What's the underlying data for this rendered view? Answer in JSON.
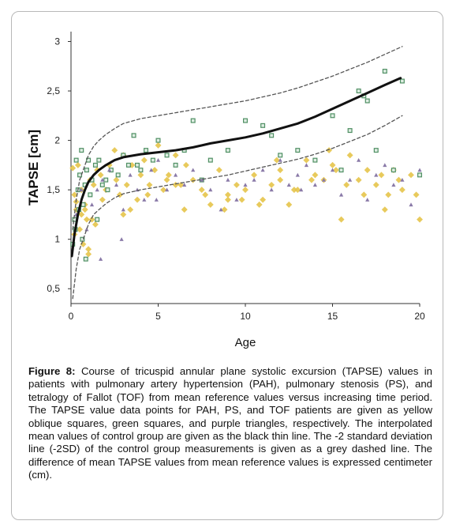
{
  "caption": {
    "label": "Figure 8:",
    "text": "Course of tricuspid annular plane systolic excursion (TAPSE) values in patients with pulmonary artery hypertension (PAH), pulmonary stenosis (PS), and tetralogy of Fallot (TOF) from mean reference values versus increasing time period. The TAPSE value data points for PAH, PS, and TOF patients are given as yellow oblique squares, green squares, and purple triangles, respectively. The interpolated mean values of control group are given as the black thin line. The -2 standard deviation line (-2SD) of the control group measurements is given as a grey dashed line. The difference of mean TAPSE values from mean reference values is expressed centimeter (cm)."
  },
  "chart_data": {
    "type": "scatter",
    "xlabel": "Age",
    "ylabel": "TAPSE [cm]",
    "xlim": [
      0,
      20
    ],
    "ylim": [
      0.35,
      3.1
    ],
    "x_ticks": [
      0,
      5,
      10,
      15,
      20
    ],
    "x_tick_labels": [
      "0",
      "5",
      "10",
      "15",
      "20"
    ],
    "y_ticks": [
      0.5,
      1,
      1.5,
      2,
      2.5,
      3
    ],
    "y_tick_labels": [
      "0,5",
      "1",
      "1,5",
      "2",
      "2,5",
      "3"
    ],
    "grid": false,
    "colors": {
      "pah": "#e6c44a",
      "ps": "#4f8f63",
      "tof": "#8a7aa8",
      "mean": "#111111",
      "sd": "#555555"
    },
    "series": [
      {
        "key": "pah",
        "marker": "diamond",
        "x": [
          0.1,
          0.2,
          0.3,
          0.4,
          0.5,
          0.6,
          0.7,
          0.8,
          0.9,
          1.0,
          1.1,
          1.2,
          1.3,
          1.5,
          1.7,
          2.0,
          2.2,
          2.5,
          2.8,
          3.0,
          3.2,
          3.5,
          3.8,
          4.0,
          4.2,
          4.5,
          4.8,
          5.0,
          5.3,
          5.6,
          6.0,
          6.3,
          6.6,
          7.0,
          7.5,
          8.0,
          8.5,
          9.0,
          9.5,
          10.0,
          10.5,
          11.0,
          11.5,
          12.0,
          12.5,
          13.0,
          13.5,
          14.0,
          14.5,
          15.0,
          15.5,
          16.0,
          16.5,
          17.0,
          17.5,
          18.0,
          18.5,
          19.0,
          19.5,
          20.0,
          0.2,
          0.6,
          1.0,
          1.4,
          1.8,
          2.6,
          3.4,
          4.4,
          5.5,
          6.5,
          7.7,
          8.8,
          9.8,
          10.8,
          11.8,
          12.8,
          13.8,
          14.8,
          15.8,
          16.8,
          17.8,
          18.8,
          19.8,
          0.3,
          0.8,
          3.0,
          6.0,
          9.0,
          12.0,
          15.2,
          18.2
        ],
        "y": [
          1.72,
          1.45,
          1.3,
          1.75,
          1.1,
          1.5,
          0.95,
          1.35,
          1.2,
          0.85,
          1.6,
          1.2,
          1.55,
          1.7,
          1.65,
          1.5,
          1.75,
          1.9,
          1.45,
          1.85,
          1.55,
          1.75,
          1.4,
          1.65,
          1.8,
          1.55,
          1.7,
          1.95,
          1.5,
          1.65,
          1.85,
          1.55,
          1.75,
          1.6,
          1.5,
          1.35,
          1.7,
          1.45,
          1.55,
          1.5,
          1.65,
          1.4,
          1.55,
          1.7,
          1.35,
          1.5,
          1.8,
          1.65,
          1.6,
          1.75,
          1.2,
          1.85,
          1.6,
          1.7,
          1.55,
          1.3,
          1.7,
          1.5,
          1.65,
          1.2,
          1.05,
          1.25,
          0.9,
          1.15,
          1.4,
          1.6,
          1.3,
          1.45,
          1.6,
          1.3,
          1.45,
          1.3,
          1.4,
          1.35,
          1.8,
          1.5,
          1.6,
          1.9,
          1.55,
          1.45,
          1.65,
          1.6,
          1.45,
          1.38,
          1.3,
          1.25,
          1.55,
          1.4,
          1.6,
          1.7,
          1.45
        ]
      },
      {
        "key": "ps",
        "marker": "square",
        "x": [
          0.1,
          0.2,
          0.3,
          0.4,
          0.5,
          0.6,
          0.7,
          0.8,
          0.9,
          1.0,
          1.1,
          1.2,
          1.4,
          1.6,
          1.8,
          2.0,
          2.3,
          2.7,
          3.0,
          3.3,
          3.6,
          4.0,
          4.3,
          4.7,
          5.0,
          5.5,
          6.0,
          6.5,
          7.0,
          8.0,
          9.0,
          10.0,
          11.0,
          11.5,
          12.0,
          13.0,
          14.0,
          15.0,
          15.5,
          16.0,
          16.5,
          17.0,
          17.5,
          18.0,
          18.5,
          19.0,
          20.0,
          0.25,
          0.45,
          0.65,
          0.85,
          1.5,
          2.1,
          3.8,
          7.5,
          16.8
        ],
        "y": [
          0.95,
          1.2,
          1.8,
          1.5,
          1.65,
          1.9,
          1.35,
          1.55,
          1.7,
          1.8,
          1.45,
          1.6,
          1.75,
          1.8,
          1.55,
          1.6,
          1.7,
          1.65,
          1.85,
          1.75,
          2.05,
          1.7,
          1.9,
          1.8,
          2.0,
          1.85,
          1.75,
          1.9,
          2.2,
          1.8,
          1.9,
          2.2,
          2.15,
          2.05,
          1.85,
          1.9,
          1.8,
          2.25,
          1.7,
          2.1,
          2.5,
          2.4,
          1.9,
          2.7,
          1.7,
          2.6,
          1.65,
          1.1,
          1.3,
          1.0,
          0.8,
          1.2,
          1.5,
          1.75,
          1.6,
          2.45
        ]
      },
      {
        "key": "tof",
        "marker": "triangle",
        "x": [
          0.3,
          0.6,
          0.9,
          1.2,
          1.5,
          1.8,
          2.2,
          2.6,
          3.0,
          3.4,
          3.8,
          4.2,
          4.6,
          5.0,
          5.5,
          6.0,
          6.5,
          7.0,
          7.5,
          8.0,
          9.0,
          9.5,
          10.0,
          10.5,
          11.0,
          11.5,
          12.0,
          12.5,
          13.0,
          13.5,
          14.0,
          14.5,
          15.0,
          15.5,
          16.0,
          16.5,
          17.0,
          17.5,
          18.0,
          18.5,
          19.0,
          19.5,
          20.0,
          1.7,
          2.9,
          4.9,
          8.6,
          13.2
        ],
        "y": [
          1.25,
          1.5,
          1.1,
          1.35,
          1.5,
          1.6,
          1.7,
          1.55,
          1.3,
          1.65,
          1.5,
          1.4,
          1.7,
          1.8,
          1.5,
          1.65,
          1.55,
          1.7,
          1.6,
          1.5,
          1.6,
          1.4,
          1.55,
          1.6,
          1.7,
          1.5,
          1.8,
          1.55,
          1.65,
          1.75,
          1.55,
          1.6,
          1.7,
          1.45,
          1.6,
          1.8,
          1.4,
          1.65,
          1.75,
          1.55,
          1.6,
          1.35,
          1.7,
          0.8,
          1.0,
          1.4,
          1.3,
          1.5
        ]
      },
      {
        "key": "mean",
        "marker": "line",
        "x": [
          0.05,
          0.2,
          0.4,
          0.6,
          0.8,
          1.0,
          1.3,
          1.6,
          2.0,
          2.5,
          3.0,
          4.0,
          5.0,
          6.0,
          7.0,
          8.0,
          9.0,
          10.0,
          11.0,
          12.0,
          13.0,
          14.0,
          15.0,
          16.0,
          17.0,
          18.0,
          18.9
        ],
        "y": [
          0.83,
          1.05,
          1.25,
          1.4,
          1.5,
          1.58,
          1.65,
          1.7,
          1.75,
          1.8,
          1.83,
          1.86,
          1.88,
          1.9,
          1.93,
          1.97,
          2.0,
          2.03,
          2.07,
          2.12,
          2.17,
          2.24,
          2.32,
          2.4,
          2.48,
          2.56,
          2.63
        ]
      },
      {
        "key": "upper_sd",
        "marker": "dashed",
        "x": [
          0.1,
          0.3,
          0.5,
          0.8,
          1.0,
          1.3,
          1.6,
          2.0,
          2.5,
          3.0,
          4.0,
          5.0,
          6.0,
          7.0,
          8.0,
          9.0,
          10.0,
          11.0,
          12.0,
          13.0,
          14.0,
          15.0,
          16.0,
          17.0,
          18.0,
          19.0
        ],
        "y": [
          1.1,
          1.4,
          1.6,
          1.75,
          1.85,
          1.94,
          2.0,
          2.06,
          2.12,
          2.17,
          2.22,
          2.25,
          2.28,
          2.31,
          2.34,
          2.37,
          2.4,
          2.44,
          2.48,
          2.53,
          2.59,
          2.65,
          2.72,
          2.79,
          2.87,
          2.95
        ]
      },
      {
        "key": "lower_sd",
        "marker": "dashed",
        "x": [
          0.1,
          0.3,
          0.5,
          0.8,
          1.0,
          1.3,
          1.6,
          2.0,
          2.5,
          3.0,
          4.0,
          5.0,
          6.0,
          7.0,
          8.0,
          9.0,
          10.0,
          11.0,
          12.0,
          13.0,
          14.0,
          15.0,
          16.0,
          17.0,
          18.0,
          19.0
        ],
        "y": [
          0.4,
          0.7,
          0.9,
          1.05,
          1.15,
          1.25,
          1.3,
          1.36,
          1.42,
          1.46,
          1.5,
          1.53,
          1.56,
          1.59,
          1.62,
          1.65,
          1.69,
          1.73,
          1.77,
          1.81,
          1.86,
          1.92,
          1.99,
          2.06,
          2.15,
          2.25
        ]
      }
    ]
  }
}
